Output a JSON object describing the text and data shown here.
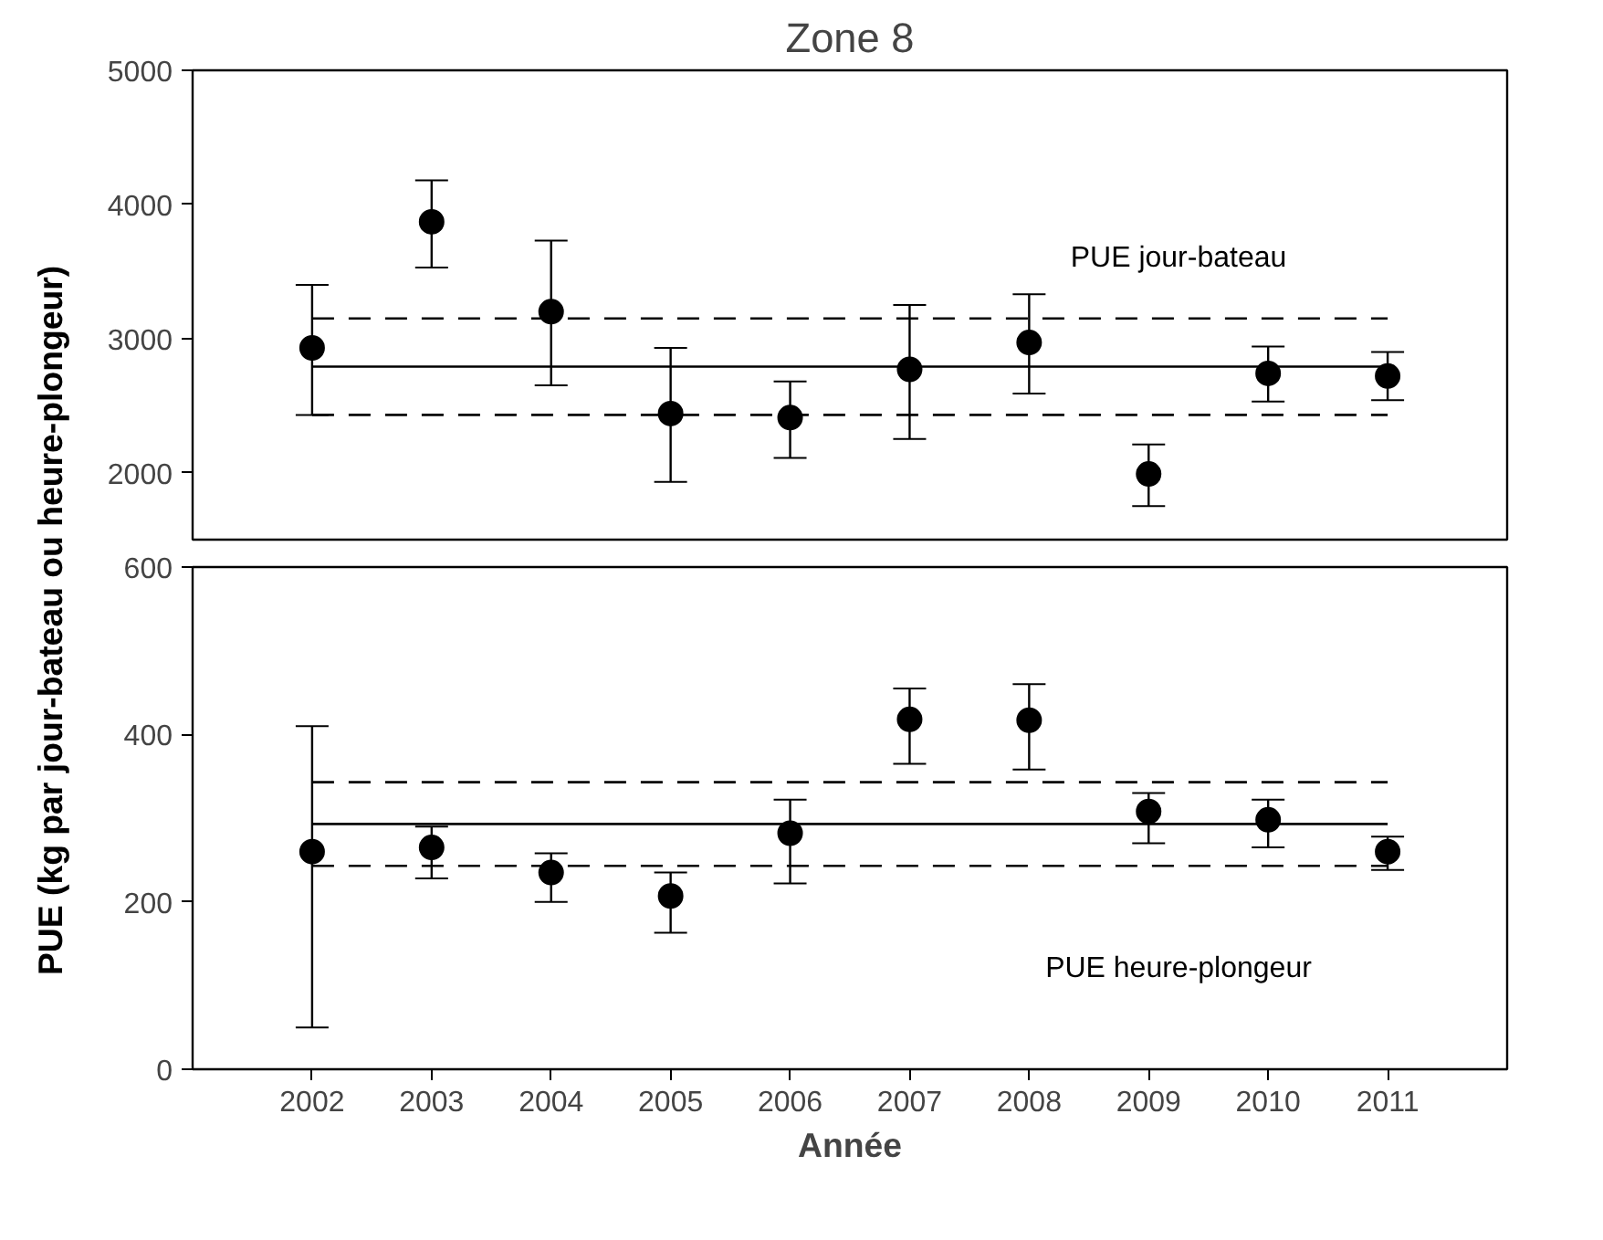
{
  "chart_data": [
    {
      "type": "scatter",
      "title": "Zone 8",
      "ylabel": "PUE (kg par jour-bateau ou heure-plongeur)",
      "x": [
        2002,
        2003,
        2004,
        2005,
        2006,
        2007,
        2008,
        2009,
        2010,
        2011
      ],
      "series": [
        {
          "name": "PUE jour-bateau",
          "color": "#000000",
          "marker": "circle",
          "values": [
            2930,
            3870,
            3200,
            2440,
            2410,
            2770,
            2970,
            1990,
            2740,
            2720
          ],
          "errors": [
            [
              2430,
              3400
            ],
            [
              3530,
              4180
            ],
            [
              2650,
              3730
            ],
            [
              1930,
              2930
            ],
            [
              2110,
              2680
            ],
            [
              2250,
              3250
            ],
            [
              2590,
              3330
            ],
            [
              1750,
              2210
            ],
            [
              2530,
              2940
            ],
            [
              2540,
              2900
            ]
          ]
        },
        {
          "type": "line",
          "color": "#000000",
          "values": [
            2790,
            2790,
            2790,
            2790,
            2790,
            2790,
            2790,
            2790,
            2790,
            2790
          ],
          "line_style": "solid"
        },
        {
          "type": "line",
          "color": "#000000",
          "values": [
            3150,
            3150,
            3150,
            3150,
            3150,
            3150,
            3150,
            3150,
            3150,
            3150
          ],
          "line_style": "dashed"
        },
        {
          "type": "line",
          "color": "#000000",
          "values": [
            2430,
            2430,
            2430,
            2430,
            2430,
            2430,
            2430,
            2430,
            2430,
            2430
          ],
          "line_style": "dashed"
        }
      ],
      "xlim": [
        2001,
        2012
      ],
      "ylim": [
        1500,
        5000
      ],
      "yticks": [
        2000,
        3000,
        4000,
        5000
      ],
      "tick_labels": "y",
      "grid": false,
      "legend": false
    },
    {
      "type": "scatter",
      "xlabel": "Année",
      "x": [
        2002,
        2003,
        2004,
        2005,
        2006,
        2007,
        2008,
        2009,
        2010,
        2011
      ],
      "series": [
        {
          "name": "PUE heure-plongeur",
          "color": "#000000",
          "marker": "circle",
          "values": [
            260,
            265,
            235,
            207,
            282,
            418,
            417,
            308,
            298,
            260
          ],
          "errors": [
            [
              50,
              410
            ],
            [
              228,
              290
            ],
            [
              200,
              258
            ],
            [
              163,
              235
            ],
            [
              222,
              322
            ],
            [
              365,
              455
            ],
            [
              358,
              460
            ],
            [
              270,
              330
            ],
            [
              265,
              322
            ],
            [
              238,
              278
            ]
          ]
        },
        {
          "type": "line",
          "color": "#000000",
          "values": [
            293,
            293,
            293,
            293,
            293,
            293,
            293,
            293,
            293,
            293
          ],
          "line_style": "solid"
        },
        {
          "type": "line",
          "color": "#000000",
          "values": [
            343,
            343,
            343,
            343,
            343,
            343,
            343,
            343,
            343,
            343
          ],
          "line_style": "dashed"
        },
        {
          "type": "line",
          "color": "#000000",
          "values": [
            243,
            243,
            243,
            243,
            243,
            243,
            243,
            243,
            243,
            243
          ],
          "line_style": "dashed"
        }
      ],
      "xlim": [
        2001,
        2012
      ],
      "xticks": [
        2002,
        2003,
        2004,
        2005,
        2006,
        2007,
        2008,
        2009,
        2010,
        2011
      ],
      "ylim": [
        0,
        600
      ],
      "yticks": [
        0,
        200,
        400,
        600
      ],
      "grid": false,
      "legend": false
    }
  ]
}
